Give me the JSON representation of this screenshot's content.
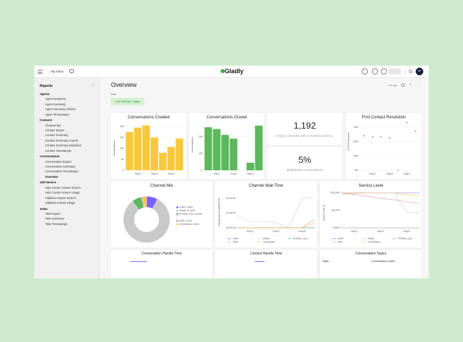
{
  "topbar": {
    "back_label": "My Inbox",
    "logo": "Gladly",
    "avatar_initials": "SP",
    "icons": [
      "menu-icon",
      "chevron-left-icon",
      "chat-bubble-icon",
      "stats-icon",
      "phone-icon",
      "message-icon",
      "search-icon"
    ]
  },
  "sidebar": {
    "title": "Reports",
    "sections": [
      {
        "label": "Agents",
        "items": [
          "Agent Durations",
          "Agent Summary",
          "Agent Summary Glance",
          "Agent Timestamps"
        ]
      },
      {
        "label": "Contacts",
        "items": [
          "Channel Mix",
          "Contact Export",
          "Contact Summary",
          "Contact Summary Counts",
          "Contact Summary Durations",
          "Contact Timestamps"
        ]
      },
      {
        "label": "Conversations",
        "items": [
          "Conversation Export",
          "Conversation Summary",
          "Conversation Timestamps",
          "Overview"
        ]
      },
      {
        "label": "Self-Service",
        "items": [
          "Help Center Answer Search",
          "Help Center Answer Usage",
          "Sidekick Answer Search",
          "Sidekick Answer Usage"
        ]
      },
      {
        "label": "Tasks",
        "items": [
          "Task Export",
          "Task Summary",
          "Task Timestamps"
        ]
      }
    ],
    "active_item": "Overview",
    "collapse_icon": "double-chevron-left-icon"
  },
  "header": {
    "title": "Overview",
    "updated": "5m ago",
    "filter_label": "Date",
    "filter_value": "is in the last 7 days"
  },
  "kpis": [
    {
      "value": "1,192",
      "label": "Unique Customers with a Closed Conversa..."
    },
    {
      "value": "5%",
      "label": "Multichannel Conversations"
    }
  ],
  "colors": {
    "CHAT": "#7b61ff",
    "EMAIL": "#c9c9c9",
    "PHONE_CALL": "#5cb85c",
    "SMS": "#e8929c",
    "VOICEMAIL": "#f6c445",
    "created": "#f8c93e",
    "closed": "#5cb85c",
    "accent": "#3fae49"
  },
  "bottom_cards": [
    "Conversation Handle Time",
    "Contact Handle Time",
    "Conversation Topics"
  ],
  "topics_table": {
    "headers": [
      "Topics",
      "Conversations Closed"
    ]
  },
  "chart_data": [
    {
      "id": "created",
      "type": "bar",
      "title": "Conversations Created",
      "ylabel": "Conversations",
      "categories": [
        "Aug 3",
        "Aug 4",
        "Aug 5",
        "Aug 6",
        "Aug 7",
        "Aug 8",
        "Aug 9"
      ],
      "xticks": [
        "Aug 4",
        "Aug 6",
        "Aug 8"
      ],
      "values": [
        175,
        195,
        205,
        150,
        80,
        107,
        145
      ],
      "ylim": [
        0,
        200
      ],
      "yticks": [
        0,
        50,
        100,
        150,
        200
      ]
    },
    {
      "id": "closed",
      "type": "bar",
      "title": "Conversations Closed",
      "ylabel": "Conversations",
      "categories": [
        "Aug 3",
        "Aug 4",
        "Aug 5",
        "Aug 6",
        "Aug 7",
        "Aug 8",
        "Aug 9"
      ],
      "xticks": [
        "Aug 4",
        "Aug 6",
        "Aug 8"
      ],
      "values": [
        255,
        245,
        210,
        188,
        0,
        45,
        265
      ],
      "ylim": [
        0,
        300
      ],
      "yticks": [
        0,
        100,
        200
      ]
    },
    {
      "id": "fcr",
      "type": "scatter",
      "title": "First Contact Resolution",
      "ylabel": "% FCR Success",
      "categories": [
        "Aug 3",
        "Aug 4",
        "Aug 5",
        "Aug 6",
        "Aug 7",
        "Aug 8",
        "Aug 9"
      ],
      "xticks": [
        "Aug 4",
        "Aug 6",
        "Aug 8"
      ],
      "values": [
        60,
        58,
        58,
        56,
        0,
        83,
        68
      ],
      "ylim": [
        0,
        100
      ],
      "yticks": [
        "0%",
        "25%",
        "50%",
        "75%"
      ]
    },
    {
      "id": "mix",
      "type": "pie",
      "title": "Channel Mix",
      "slices": [
        {
          "name": "CHAT",
          "pct": 7.86,
          "label": "CHAT 7.86%"
        },
        {
          "name": "EMAIL",
          "pct": 81.82,
          "label": "EMAIL 81.82%"
        },
        {
          "name": "PHONE_CALL",
          "pct": 6.62,
          "label": "PHONE_CALL 6.62%"
        },
        {
          "name": "SMS",
          "pct": 1.04,
          "label": "SMS 1.04%"
        },
        {
          "name": "VOICEMAIL",
          "pct": 2.65,
          "label": "VOICEMAIL 2.65%"
        }
      ]
    },
    {
      "id": "wait",
      "type": "line",
      "title": "Channel Wait Time",
      "ylabel": "Avg Queued-to-Fulfilled Time",
      "categories": [
        "Aug 3",
        "Aug 4",
        "Aug 5",
        "Aug 6",
        "Aug 7",
        "Aug 8",
        "Aug 9"
      ],
      "xticks": [
        "Aug 4",
        "Aug 6",
        "Aug 8"
      ],
      "ylim": [
        0,
        30
      ],
      "yticks": [
        "00:00:00",
        "12:00:00",
        "24:00:00"
      ],
      "series": [
        {
          "name": "CHAT",
          "values": [
            0,
            0,
            0,
            0,
            0,
            0,
            0
          ]
        },
        {
          "name": "EMAIL",
          "values": [
            10,
            5,
            5,
            4,
            0,
            24,
            25
          ]
        },
        {
          "name": "PHONE_CALL",
          "values": [
            0,
            0,
            0,
            0,
            0,
            0,
            0
          ]
        },
        {
          "name": "SMS",
          "values": [
            0,
            0,
            0,
            0,
            0,
            0,
            7
          ]
        },
        {
          "name": "VOICEMAIL",
          "values": [
            0,
            0,
            0,
            0,
            0,
            0,
            4
          ]
        }
      ]
    },
    {
      "id": "service",
      "type": "line",
      "title": "Service Level",
      "ylabel": "Service Level %",
      "categories": [
        "Aug 3",
        "Aug 4",
        "Aug 5",
        "Aug 6",
        "Aug 7",
        "Aug 8",
        "Aug 9"
      ],
      "xticks": [
        "Aug 4",
        "Aug 6",
        "Aug 8"
      ],
      "ylim": [
        0,
        100
      ],
      "yticks": [
        "0.00%",
        "50.00%",
        "100.00%"
      ],
      "series": [
        {
          "name": "CHAT",
          "values": [
            100,
            100,
            100,
            100,
            100,
            100,
            100
          ]
        },
        {
          "name": "EMAIL",
          "values": [
            96,
            98,
            100,
            100,
            100,
            45,
            44
          ]
        },
        {
          "name": "PHONE_CALL",
          "values": [
            0,
            0,
            0,
            0,
            0,
            0,
            0
          ]
        },
        {
          "name": "SMS",
          "values": [
            100,
            95,
            90,
            85,
            80,
            75,
            70
          ]
        },
        {
          "name": "VOICEMAIL",
          "values": [
            100,
            100,
            100,
            100,
            100,
            95,
            91
          ]
        }
      ]
    }
  ]
}
